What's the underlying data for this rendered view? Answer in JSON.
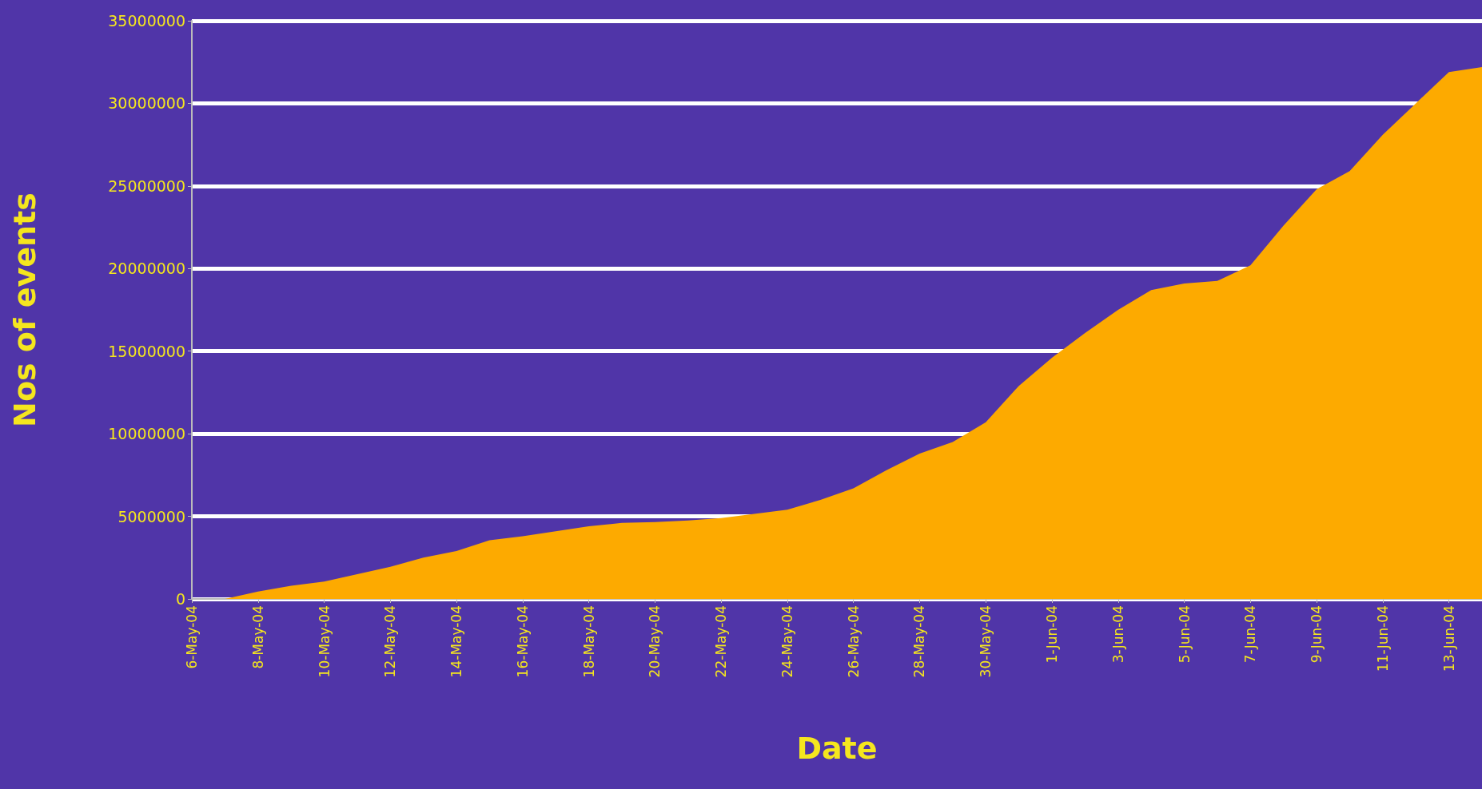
{
  "chart_data": {
    "type": "area",
    "xlabel": "Date",
    "ylabel": "Nos of events",
    "categories": [
      "6-May-04",
      null,
      "8-May-04",
      null,
      "10-May-04",
      null,
      "12-May-04",
      null,
      "14-May-04",
      null,
      "16-May-04",
      null,
      "18-May-04",
      null,
      "20-May-04",
      null,
      "22-May-04",
      null,
      "24-May-04",
      null,
      "26-May-04",
      null,
      "28-May-04",
      null,
      "30-May-04",
      null,
      "1-Jun-04",
      null,
      "3-Jun-04",
      null,
      "5-Jun-04",
      null,
      "7-Jun-04",
      null,
      "9-Jun-04",
      null,
      "11-Jun-04",
      null,
      "13-Jun-04",
      null
    ],
    "series": [
      {
        "color": "#fdaa00",
        "values": [
          0,
          0,
          450000,
          800000,
          1050000,
          1500000,
          1950000,
          2500000,
          2900000,
          3550000,
          3800000,
          4100000,
          4400000,
          4600000,
          4650000,
          4750000,
          4900000,
          5150000,
          5400000,
          6000000,
          6700000,
          7800000,
          8800000,
          9500000,
          10700000,
          12900000,
          14600000,
          16100000,
          17500000,
          18700000,
          19100000,
          19250000,
          20200000,
          22600000,
          24800000,
          25900000,
          28100000,
          30000000,
          31900000,
          32200000
        ]
      }
    ],
    "ylim": [
      0,
      35000000
    ],
    "yticks": [
      0,
      5000000,
      10000000,
      15000000,
      20000000,
      25000000,
      30000000,
      35000000
    ],
    "grid": "y"
  }
}
